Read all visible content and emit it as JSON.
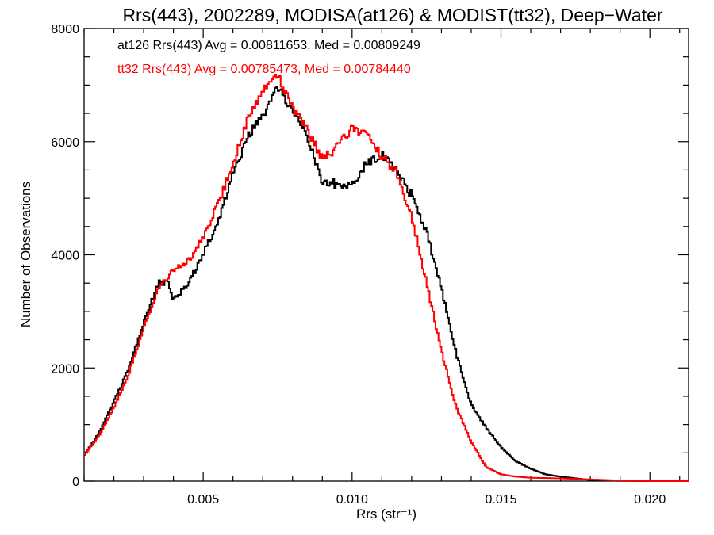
{
  "chart_data": {
    "type": "line",
    "title": "Rrs(443), 2002289, MODISA(at126) & MODIST(tt32), Deep−Water",
    "xlabel": "Rrs (str⁻¹)",
    "ylabel": "Number of Observations",
    "xlim": [
      0.001,
      0.0213
    ],
    "ylim": [
      0,
      8000
    ],
    "x_ticks": [
      0.005,
      0.01,
      0.015,
      0.02
    ],
    "x_tick_labels": [
      "0.005",
      "0.010",
      "0.015",
      "0.020"
    ],
    "y_ticks": [
      0,
      2000,
      4000,
      6000,
      8000
    ],
    "y_tick_labels": [
      "0",
      "2000",
      "4000",
      "6000",
      "8000"
    ],
    "grid": false,
    "annotations": [
      {
        "text": "at126 Rrs(443) Avg = 0.00811653, Med = 0.00809249",
        "color": "#000000"
      },
      {
        "text": "tt32 Rrs(443) Avg = 0.00785473, Med = 0.00784440",
        "color": "#ff0000"
      }
    ],
    "series": [
      {
        "name": "at126",
        "color": "#000000",
        "points": [
          [
            0.001,
            450
          ],
          [
            0.0015,
            850
          ],
          [
            0.002,
            1400
          ],
          [
            0.0025,
            2000
          ],
          [
            0.003,
            2800
          ],
          [
            0.0035,
            3500
          ],
          [
            0.0038,
            3520
          ],
          [
            0.004,
            3200
          ],
          [
            0.0045,
            3500
          ],
          [
            0.005,
            4000
          ],
          [
            0.0055,
            4600
          ],
          [
            0.006,
            5400
          ],
          [
            0.0065,
            6100
          ],
          [
            0.007,
            6450
          ],
          [
            0.0075,
            6950
          ],
          [
            0.008,
            6550
          ],
          [
            0.0085,
            6100
          ],
          [
            0.009,
            5300
          ],
          [
            0.0095,
            5250
          ],
          [
            0.01,
            5200
          ],
          [
            0.0105,
            5650
          ],
          [
            0.011,
            5750
          ],
          [
            0.0115,
            5500
          ],
          [
            0.012,
            5050
          ],
          [
            0.0125,
            4400
          ],
          [
            0.013,
            3400
          ],
          [
            0.0135,
            2250
          ],
          [
            0.014,
            1350
          ],
          [
            0.0145,
            950
          ],
          [
            0.015,
            600
          ],
          [
            0.0155,
            350
          ],
          [
            0.016,
            220
          ],
          [
            0.0165,
            120
          ],
          [
            0.017,
            80
          ],
          [
            0.0175,
            50
          ],
          [
            0.018,
            20
          ],
          [
            0.019,
            5
          ],
          [
            0.02,
            0
          ],
          [
            0.0213,
            0
          ]
        ]
      },
      {
        "name": "tt32",
        "color": "#ff0000",
        "points": [
          [
            0.001,
            450
          ],
          [
            0.0015,
            800
          ],
          [
            0.002,
            1300
          ],
          [
            0.0025,
            1900
          ],
          [
            0.003,
            2700
          ],
          [
            0.0035,
            3400
          ],
          [
            0.004,
            3750
          ],
          [
            0.0045,
            3900
          ],
          [
            0.005,
            4300
          ],
          [
            0.0055,
            4900
          ],
          [
            0.006,
            5600
          ],
          [
            0.0065,
            6400
          ],
          [
            0.007,
            6900
          ],
          [
            0.0075,
            7200
          ],
          [
            0.008,
            6600
          ],
          [
            0.0085,
            6200
          ],
          [
            0.009,
            5700
          ],
          [
            0.0095,
            5900
          ],
          [
            0.01,
            6250
          ],
          [
            0.0105,
            6100
          ],
          [
            0.011,
            5750
          ],
          [
            0.0115,
            5450
          ],
          [
            0.012,
            4700
          ],
          [
            0.0125,
            3500
          ],
          [
            0.013,
            2300
          ],
          [
            0.0135,
            1300
          ],
          [
            0.014,
            700
          ],
          [
            0.0145,
            250
          ],
          [
            0.015,
            120
          ],
          [
            0.0155,
            80
          ],
          [
            0.016,
            60
          ],
          [
            0.017,
            50
          ],
          [
            0.018,
            30
          ],
          [
            0.019,
            10
          ],
          [
            0.02,
            0
          ],
          [
            0.0213,
            0
          ]
        ]
      }
    ]
  }
}
